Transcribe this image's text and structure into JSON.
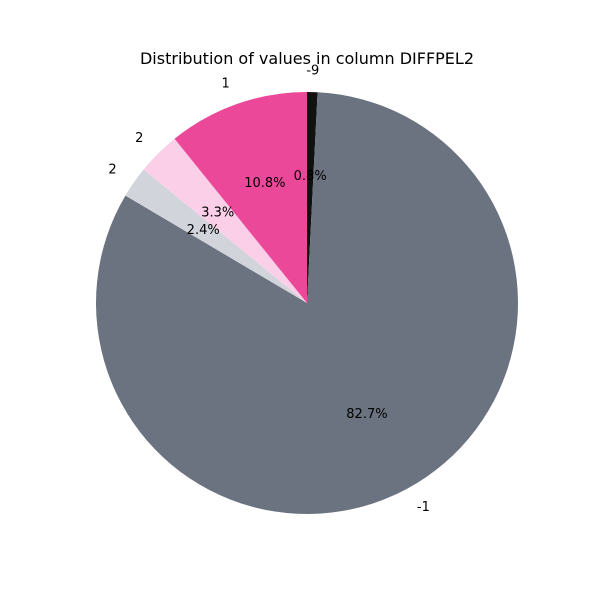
{
  "chart_data": {
    "type": "pie",
    "title": "Distribution of values in column DIFFPEL2",
    "slices": [
      {
        "label": "-9",
        "value": 0.8,
        "pct_label": "0.8%",
        "color": "#111111"
      },
      {
        "label": "-1",
        "value": 82.7,
        "pct_label": "82.7%",
        "color": "#6b7280"
      },
      {
        "label": "2",
        "value": 2.4,
        "pct_label": "2.4%",
        "color": "#d1d5db"
      },
      {
        "label": "2",
        "value": 3.3,
        "pct_label": "3.3%",
        "color": "#fbcfe8"
      },
      {
        "label": "1",
        "value": 10.8,
        "pct_label": "10.8%",
        "color": "#ec4899"
      }
    ]
  }
}
